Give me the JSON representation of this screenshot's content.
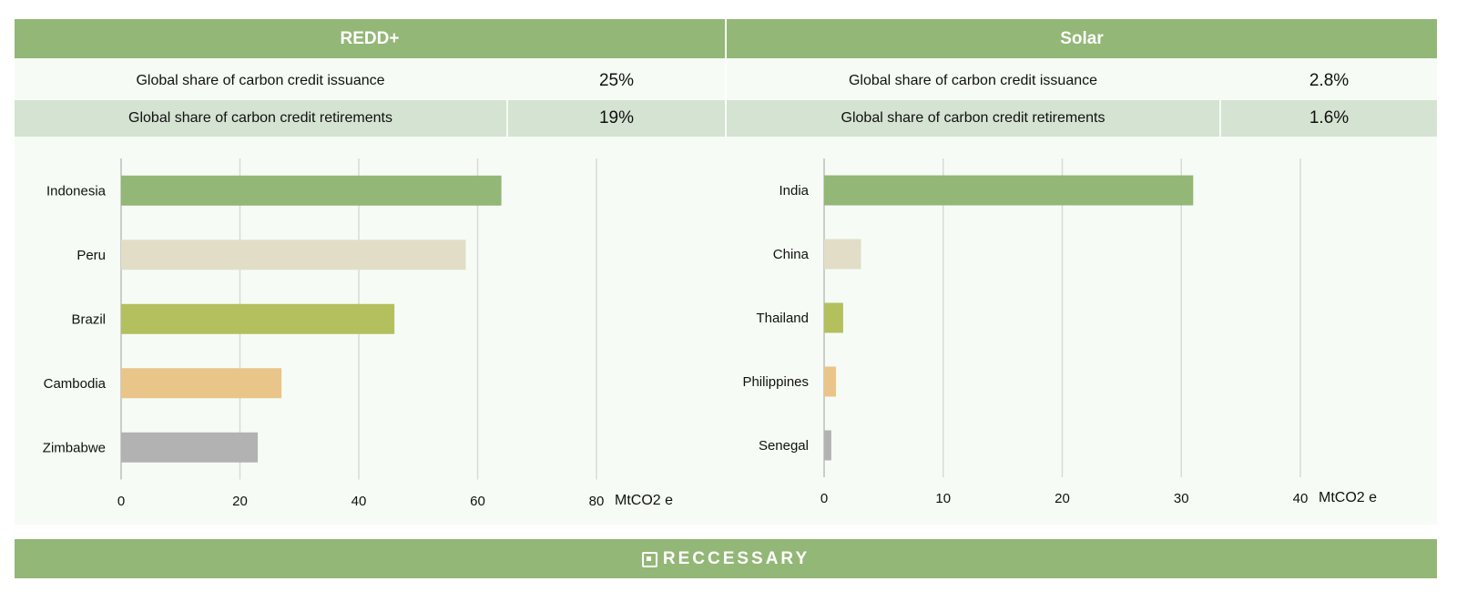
{
  "panels": [
    {
      "title": "REDD+",
      "stats": [
        {
          "label": "Global share of carbon credit issuance",
          "value": "25%"
        },
        {
          "label": "Global share of carbon credit retirements",
          "value": "19%"
        }
      ]
    },
    {
      "title": "Solar",
      "stats": [
        {
          "label": "Global share of carbon credit issuance",
          "value": "2.8%"
        },
        {
          "label": "Global share of carbon credit retirements",
          "value": "1.6%"
        }
      ]
    }
  ],
  "chart_data": [
    {
      "type": "bar",
      "orientation": "horizontal",
      "categories": [
        "Indonesia",
        "Peru",
        "Brazil",
        "Cambodia",
        "Zimbabwe"
      ],
      "values": [
        64,
        58,
        46,
        27,
        23
      ],
      "colors": [
        "#93b776",
        "#e2ddc6",
        "#b4bf5e",
        "#e9c589",
        "#b2b2b2"
      ],
      "xlim": [
        0,
        80
      ],
      "xticks": [
        0,
        20,
        40,
        60,
        80
      ],
      "unit": "MtCO2 e",
      "grid": true
    },
    {
      "type": "bar",
      "orientation": "horizontal",
      "categories": [
        "India",
        "China",
        "Thailand",
        "Philippines",
        "Senegal"
      ],
      "values": [
        31,
        3.1,
        1.6,
        1.0,
        0.6
      ],
      "colors": [
        "#93b776",
        "#e2ddc6",
        "#b4bf5e",
        "#e9c589",
        "#b2b2b2"
      ],
      "xlim": [
        0,
        40
      ],
      "xticks": [
        0,
        10,
        20,
        30,
        40
      ],
      "unit": "MtCO2 e",
      "grid": true
    }
  ],
  "footer": {
    "brand": "RECCESSARY",
    "logo_icon": "reccessary-logo-icon"
  }
}
